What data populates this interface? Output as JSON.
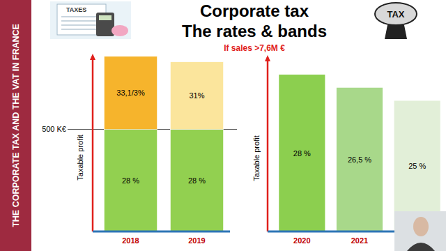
{
  "slide": {
    "banner": "THE CORPORATE TAX AND THE VAT IN FRANCE",
    "title": [
      "Corporate tax",
      "The rates & bands"
    ],
    "subtitle": "If sales >7,6M €",
    "icons": [
      "TAXES",
      "TAX"
    ]
  },
  "chart_data": [
    {
      "type": "bar",
      "stacked": true,
      "ylabel": "Taxable profit",
      "categories": [
        "2018",
        "2019"
      ],
      "series": [
        {
          "values": [
            500,
            500
          ],
          "labels": [
            "28 %",
            "28 %"
          ],
          "colors": [
            "#92d050",
            "#92d050"
          ]
        },
        {
          "values": [
            357,
            330
          ],
          "labels": [
            "33,1/3%",
            "31%"
          ],
          "colors": [
            "#f6b42c",
            "#fbe59c"
          ]
        }
      ],
      "ylim": [
        0,
        860
      ],
      "yticks": [
        {
          "value": 500,
          "label": "500 K€"
        }
      ],
      "grid": true
    },
    {
      "type": "bar",
      "ylabel": "Taxable profit",
      "categories": [
        "2020",
        "2021",
        null
      ],
      "values": [
        28,
        26.5,
        25
      ],
      "value_labels": [
        "28 %",
        "26,5 %",
        "25 %"
      ],
      "colors": [
        "#8ccf4f",
        "#a8d88a",
        "#e2efd8"
      ],
      "ylim": [
        10,
        30
      ],
      "yticks": [],
      "data_labels": true,
      "tick_labels": "x"
    }
  ]
}
